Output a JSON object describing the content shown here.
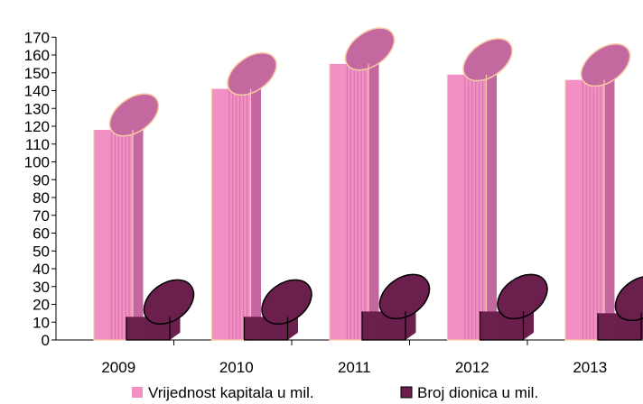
{
  "chart_data": {
    "type": "bar",
    "style": "3d-cylinder",
    "categories": [
      "2009",
      "2010",
      "2011",
      "2012",
      "2013"
    ],
    "series": [
      {
        "name": "Vrijednost kapitala u mil.",
        "values": [
          118,
          141,
          155,
          149,
          146
        ],
        "color": "#f28fc4",
        "side_color": "#c4669f",
        "top_color": "#c4699f",
        "edge_color": "#f7c9a3"
      },
      {
        "name": "Broj dionica u mil.",
        "values": [
          13,
          13,
          16,
          16,
          15
        ],
        "color": "#6b1f4c",
        "side_color": "#6b1f4c",
        "top_color": "#6b1f4c",
        "edge_color": "#000000"
      }
    ],
    "ylim": [
      0,
      170
    ],
    "yticks": [
      "0",
      "10",
      "20",
      "30",
      "40",
      "50",
      "60",
      "70",
      "80",
      "90",
      "100",
      "110",
      "120",
      "130",
      "140",
      "150",
      "160",
      "170"
    ],
    "grid": false,
    "legend_position": "bottom"
  }
}
